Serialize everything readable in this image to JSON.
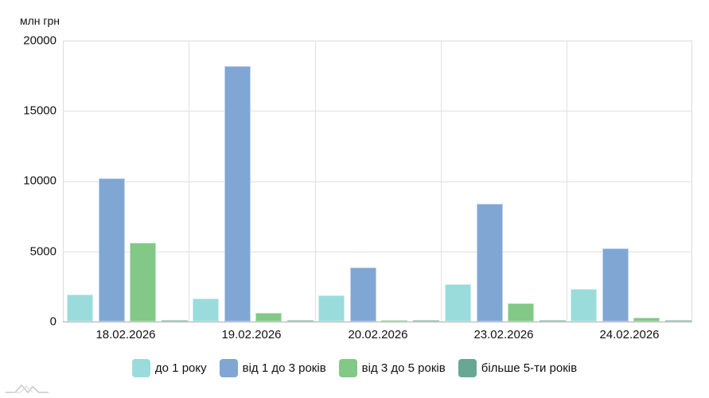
{
  "chart_data": {
    "type": "bar",
    "title": "",
    "xlabel": "",
    "ylabel": "млн грн",
    "ylim": [
      0,
      20000
    ],
    "yticks": [
      0,
      5000,
      10000,
      15000,
      20000
    ],
    "grid": true,
    "legend_position": "bottom",
    "categories": [
      "18.02.2026",
      "19.02.2026",
      "20.02.2026",
      "23.02.2026",
      "24.02.2026"
    ],
    "series": [
      {
        "name": "до 1 року",
        "color": "#9adcdc",
        "values": [
          1925,
          1640,
          1880,
          2680,
          2320
        ]
      },
      {
        "name": "від 1 до 3 років",
        "color": "#80a6d4",
        "values": [
          10200,
          18200,
          3860,
          8400,
          5230
        ]
      },
      {
        "name": "від 3 до 5 років",
        "color": "#82c886",
        "values": [
          5600,
          620,
          60,
          1290,
          300
        ]
      },
      {
        "name": "більше 5-ти років",
        "color": "#67a793",
        "values": [
          30,
          20,
          10,
          20,
          30
        ]
      }
    ]
  },
  "axis": {
    "unit_label": "млн грн",
    "y_labels": [
      "20000",
      "15000",
      "10000",
      "5000",
      "0"
    ]
  },
  "legend": {
    "items": [
      {
        "label": "до 1 року",
        "color": "#9adcdc"
      },
      {
        "label": "від 1 до 3 років",
        "color": "#80a6d4"
      },
      {
        "label": "від 3 до 5 років",
        "color": "#82c886"
      },
      {
        "label": "більше 5-ти років",
        "color": "#67a793"
      }
    ]
  },
  "logo": {
    "icon": "mountain-wave-logo-icon"
  }
}
